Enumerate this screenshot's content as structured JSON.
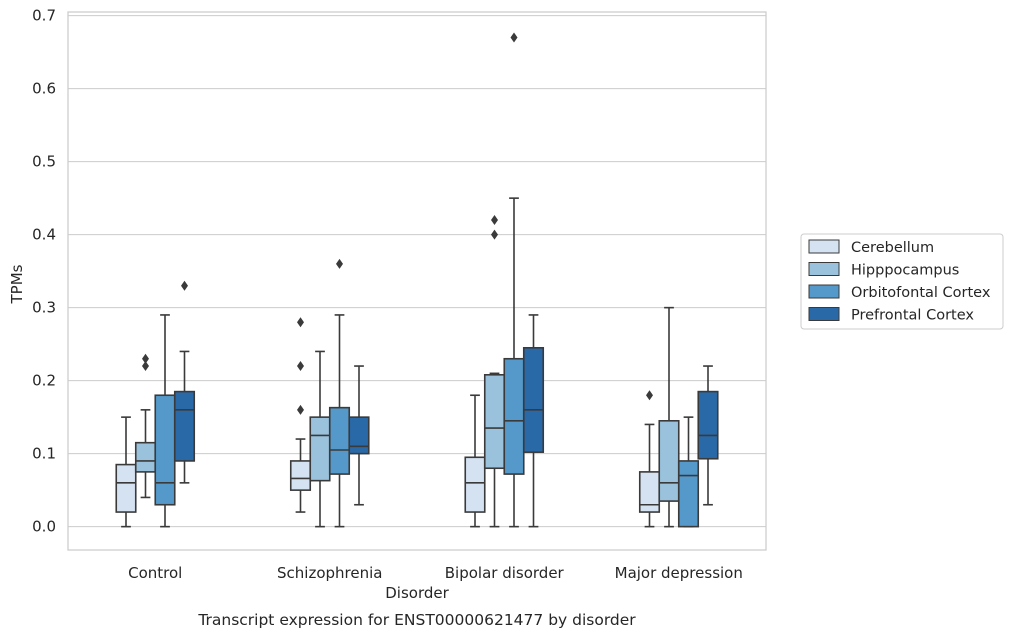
{
  "chart_data": {
    "type": "box",
    "title": "",
    "caption": "Transcript expression for ENST00000621477 by disorder",
    "xlabel": "Disorder",
    "ylabel": "TPMs",
    "ylim": [
      -0.032,
      0.705
    ],
    "yticks": [
      "0.0",
      "0.1",
      "0.2",
      "0.3",
      "0.4",
      "0.5",
      "0.6",
      "0.7"
    ],
    "grid": "horizontal",
    "legend_position": "right",
    "categories": [
      "Control",
      "Schizophrenia",
      "Bipolar disorder",
      "Major depression"
    ],
    "series": [
      {
        "name": "Cerebellum",
        "color": "#d5e2f1",
        "boxes": [
          {
            "whislo": 0.0,
            "q1": 0.02,
            "med": 0.06,
            "q3": 0.085,
            "whishi": 0.15,
            "fliers": []
          },
          {
            "whislo": 0.02,
            "q1": 0.05,
            "med": 0.066,
            "q3": 0.09,
            "whishi": 0.12,
            "fliers": [
              0.16,
              0.22,
              0.28
            ]
          },
          {
            "whislo": 0.0,
            "q1": 0.02,
            "med": 0.06,
            "q3": 0.095,
            "whishi": 0.18,
            "fliers": []
          },
          {
            "whislo": 0.0,
            "q1": 0.02,
            "med": 0.03,
            "q3": 0.075,
            "whishi": 0.14,
            "fliers": [
              0.18
            ]
          }
        ]
      },
      {
        "name": "Hipppocampus",
        "color": "#9ac2dc",
        "boxes": [
          {
            "whislo": 0.04,
            "q1": 0.075,
            "med": 0.09,
            "q3": 0.115,
            "whishi": 0.16,
            "fliers": [
              0.22,
              0.23
            ]
          },
          {
            "whislo": 0.0,
            "q1": 0.063,
            "med": 0.125,
            "q3": 0.15,
            "whishi": 0.24,
            "fliers": []
          },
          {
            "whislo": 0.0,
            "q1": 0.08,
            "med": 0.135,
            "q3": 0.208,
            "whishi": 0.21,
            "fliers": [
              0.4,
              0.42
            ]
          },
          {
            "whislo": 0.0,
            "q1": 0.035,
            "med": 0.06,
            "q3": 0.145,
            "whishi": 0.3,
            "fliers": []
          }
        ]
      },
      {
        "name": "Orbitofontal Cortex",
        "color": "#5499c9",
        "boxes": [
          {
            "whislo": 0.0,
            "q1": 0.03,
            "med": 0.06,
            "q3": 0.18,
            "whishi": 0.29,
            "fliers": []
          },
          {
            "whislo": 0.0,
            "q1": 0.072,
            "med": 0.105,
            "q3": 0.163,
            "whishi": 0.29,
            "fliers": [
              0.36
            ]
          },
          {
            "whislo": 0.0,
            "q1": 0.072,
            "med": 0.145,
            "q3": 0.23,
            "whishi": 0.45,
            "fliers": [
              0.67
            ]
          },
          {
            "whislo": 0.0,
            "q1": 0.0,
            "med": 0.07,
            "q3": 0.09,
            "whishi": 0.15,
            "fliers": []
          }
        ]
      },
      {
        "name": "Prefrontal Cortex",
        "color": "#2a69a7",
        "boxes": [
          {
            "whislo": 0.06,
            "q1": 0.09,
            "med": 0.16,
            "q3": 0.185,
            "whishi": 0.24,
            "fliers": [
              0.33
            ]
          },
          {
            "whislo": 0.03,
            "q1": 0.1,
            "med": 0.11,
            "q3": 0.15,
            "whishi": 0.22,
            "fliers": []
          },
          {
            "whislo": 0.0,
            "q1": 0.102,
            "med": 0.16,
            "q3": 0.245,
            "whishi": 0.29,
            "fliers": []
          },
          {
            "whislo": 0.03,
            "q1": 0.093,
            "med": 0.125,
            "q3": 0.185,
            "whishi": 0.22,
            "fliers": []
          }
        ]
      }
    ]
  }
}
